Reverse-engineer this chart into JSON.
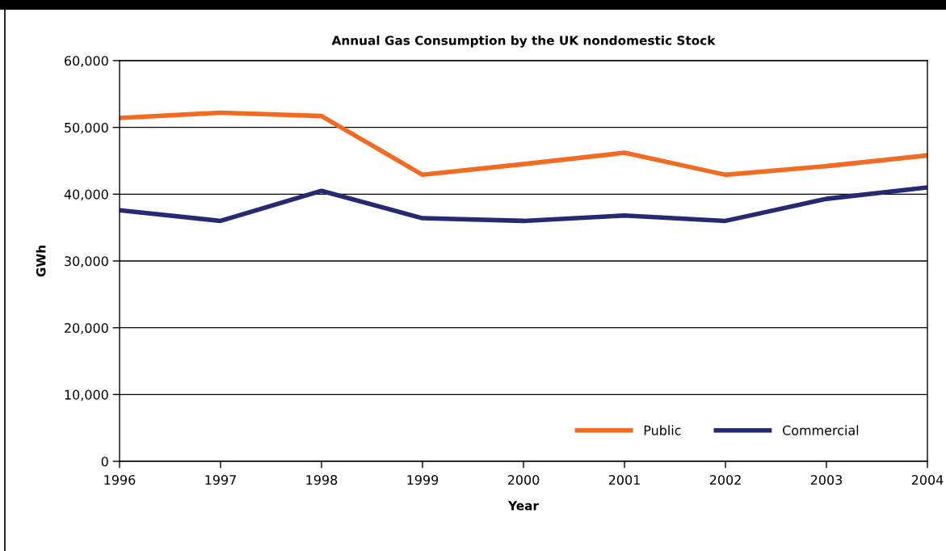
{
  "chart_data": {
    "type": "line",
    "title": "Annual Gas Consumption by the UK nondomestic Stock",
    "xlabel": "Year",
    "ylabel": "GWh",
    "x": [
      1996,
      1997,
      1998,
      1999,
      2000,
      2001,
      2002,
      2003,
      2004
    ],
    "series": [
      {
        "name": "Public",
        "color": "#f26b21",
        "values": [
          51400,
          52200,
          51700,
          42900,
          44500,
          46200,
          42900,
          44200,
          45800
        ]
      },
      {
        "name": "Commercial",
        "color": "#262a73",
        "values": [
          37600,
          36000,
          40500,
          36400,
          36000,
          36800,
          36000,
          39300,
          41000
        ]
      }
    ],
    "xlim": [
      1996,
      2004
    ],
    "xticks": [
      1996,
      1997,
      1998,
      1999,
      2000,
      2001,
      2002,
      2003,
      2004
    ],
    "ylim": [
      0,
      60000
    ],
    "yticks": [
      0,
      {
        "value": 10000,
        "label": "10,000"
      },
      {
        "value": 20000,
        "label": "20,000"
      },
      {
        "value": 30000,
        "label": "30,000"
      },
      {
        "value": 40000,
        "label": "40,000"
      },
      {
        "value": 50000,
        "label": "50,000"
      },
      {
        "value": 60000,
        "label": "60,000"
      }
    ],
    "grid": "y",
    "legend": "bottom right",
    "marker": "none",
    "line_style": "solid"
  }
}
